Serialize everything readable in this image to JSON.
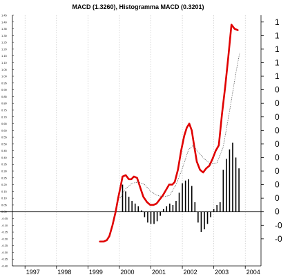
{
  "chart_data": {
    "type": "line",
    "title": "MACD (1.3260), Histogramma MACD (0.3201)",
    "xlabel": "",
    "ylabel": "",
    "xlim": [
      1996.6,
      2004.5
    ],
    "ylim": [
      -0.4,
      1.45
    ],
    "left_ticks": [
      "-0.40",
      "-0.35",
      "-0.30",
      "-0.25",
      "-0.20",
      "-0.15",
      "-0.10",
      "-0.05",
      "0.00",
      "0.05",
      "0.10",
      "0.15",
      "0.20",
      "0.25",
      "0.30",
      "0.35",
      "0.40",
      "0.45",
      "0.50",
      "0.55",
      "0.60",
      "0.65",
      "0.70",
      "0.75",
      "0.80",
      "0.85",
      "0.90",
      "0.95",
      "1.00",
      "1.05",
      "1.10",
      "1.15",
      "1.20",
      "1.25",
      "1.30",
      "1.35",
      "1.40",
      "1.45"
    ],
    "right_ticks": [
      {
        "label": "-0",
        "value": -0.2
      },
      {
        "label": "-0",
        "value": -0.1
      },
      {
        "label": "0",
        "value": 0.0
      },
      {
        "label": "0",
        "value": 0.1
      },
      {
        "label": "0",
        "value": 0.2
      },
      {
        "label": "0",
        "value": 0.3
      },
      {
        "label": "0",
        "value": 0.4
      },
      {
        "label": "0",
        "value": 0.5
      },
      {
        "label": "0",
        "value": 0.6
      },
      {
        "label": "0",
        "value": 0.7
      },
      {
        "label": "0",
        "value": 0.8
      },
      {
        "label": "0",
        "value": 0.9
      },
      {
        "label": "1",
        "value": 1.0
      },
      {
        "label": "1",
        "value": 1.1
      },
      {
        "label": "1",
        "value": 1.2
      },
      {
        "label": "1",
        "value": 1.3
      },
      {
        "label": "1",
        "value": 1.4
      }
    ],
    "x_ticks": [
      "1997",
      "1998",
      "1999",
      "2000",
      "2001",
      "2002",
      "2003",
      "2004"
    ],
    "grid": true,
    "series": [
      {
        "kind": "macd",
        "color": "#e00000",
        "points": [
          [
            1999.38,
            -0.22
          ],
          [
            1999.5,
            -0.22
          ],
          [
            1999.6,
            -0.21
          ],
          [
            1999.68,
            -0.18
          ],
          [
            1999.78,
            -0.1
          ],
          [
            1999.88,
            0.0
          ],
          [
            1999.96,
            0.1
          ],
          [
            2000.04,
            0.19
          ],
          [
            2000.1,
            0.26
          ],
          [
            2000.2,
            0.27
          ],
          [
            2000.3,
            0.24
          ],
          [
            2000.38,
            0.24
          ],
          [
            2000.46,
            0.26
          ],
          [
            2000.56,
            0.25
          ],
          [
            2000.66,
            0.18
          ],
          [
            2000.76,
            0.11
          ],
          [
            2000.88,
            0.07
          ],
          [
            2000.98,
            0.05
          ],
          [
            2001.08,
            0.05
          ],
          [
            2001.18,
            0.06
          ],
          [
            2001.28,
            0.09
          ],
          [
            2001.38,
            0.12
          ],
          [
            2001.48,
            0.16
          ],
          [
            2001.58,
            0.2
          ],
          [
            2001.68,
            0.2
          ],
          [
            2001.76,
            0.22
          ],
          [
            2001.86,
            0.31
          ],
          [
            2001.96,
            0.45
          ],
          [
            2002.06,
            0.56
          ],
          [
            2002.14,
            0.62
          ],
          [
            2002.22,
            0.65
          ],
          [
            2002.3,
            0.6
          ],
          [
            2002.38,
            0.48
          ],
          [
            2002.46,
            0.37
          ],
          [
            2002.56,
            0.31
          ],
          [
            2002.66,
            0.29
          ],
          [
            2002.76,
            0.32
          ],
          [
            2002.86,
            0.34
          ],
          [
            2002.96,
            0.39
          ],
          [
            2003.06,
            0.45
          ],
          [
            2003.16,
            0.49
          ],
          [
            2003.26,
            0.72
          ],
          [
            2003.36,
            0.92
          ],
          [
            2003.46,
            1.14
          ],
          [
            2003.56,
            1.38
          ],
          [
            2003.66,
            1.35
          ],
          [
            2003.76,
            1.34
          ]
        ]
      },
      {
        "kind": "signal",
        "color": "#555555",
        "points": [
          [
            2000.02,
            0.1
          ],
          [
            2000.2,
            0.17
          ],
          [
            2000.4,
            0.21
          ],
          [
            2000.6,
            0.22
          ],
          [
            2000.8,
            0.2
          ],
          [
            2001.0,
            0.15
          ],
          [
            2001.2,
            0.12
          ],
          [
            2001.4,
            0.11
          ],
          [
            2001.6,
            0.12
          ],
          [
            2001.8,
            0.2
          ],
          [
            2002.0,
            0.32
          ],
          [
            2002.2,
            0.46
          ],
          [
            2002.35,
            0.49
          ],
          [
            2002.5,
            0.44
          ],
          [
            2002.7,
            0.39
          ],
          [
            2002.9,
            0.35
          ],
          [
            2003.1,
            0.36
          ],
          [
            2003.3,
            0.48
          ],
          [
            2003.5,
            0.74
          ],
          [
            2003.7,
            1.02
          ],
          [
            2003.82,
            1.17
          ]
        ]
      }
    ],
    "histogram": [
      [
        2000.1,
        0.2
      ],
      [
        2000.2,
        0.15
      ],
      [
        2000.3,
        0.11
      ],
      [
        2000.4,
        0.08
      ],
      [
        2000.5,
        0.06
      ],
      [
        2000.6,
        0.04
      ],
      [
        2000.7,
        0.01
      ],
      [
        2000.8,
        -0.04
      ],
      [
        2000.9,
        -0.08
      ],
      [
        2001.0,
        -0.09
      ],
      [
        2001.1,
        -0.09
      ],
      [
        2001.2,
        -0.07
      ],
      [
        2001.3,
        -0.03
      ],
      [
        2001.4,
        0.02
      ],
      [
        2001.5,
        0.04
      ],
      [
        2001.6,
        0.06
      ],
      [
        2001.7,
        0.05
      ],
      [
        2001.8,
        0.08
      ],
      [
        2001.9,
        0.14
      ],
      [
        2002.0,
        0.21
      ],
      [
        2002.1,
        0.23
      ],
      [
        2002.2,
        0.24
      ],
      [
        2002.3,
        0.19
      ],
      [
        2002.4,
        0.07
      ],
      [
        2002.5,
        -0.08
      ],
      [
        2002.6,
        -0.15
      ],
      [
        2002.7,
        -0.13
      ],
      [
        2002.8,
        -0.09
      ],
      [
        2002.9,
        -0.04
      ],
      [
        2003.0,
        0.02
      ],
      [
        2003.1,
        0.05
      ],
      [
        2003.2,
        0.07
      ],
      [
        2003.3,
        0.31
      ],
      [
        2003.4,
        0.39
      ],
      [
        2003.5,
        0.46
      ],
      [
        2003.6,
        0.51
      ],
      [
        2003.7,
        0.4
      ],
      [
        2003.8,
        0.32
      ]
    ],
    "colors": {
      "macd": "#e00000",
      "signal": "#555555",
      "histogram": "#000000",
      "grid": "#bbbbbb",
      "zero_line": "#000000"
    }
  }
}
